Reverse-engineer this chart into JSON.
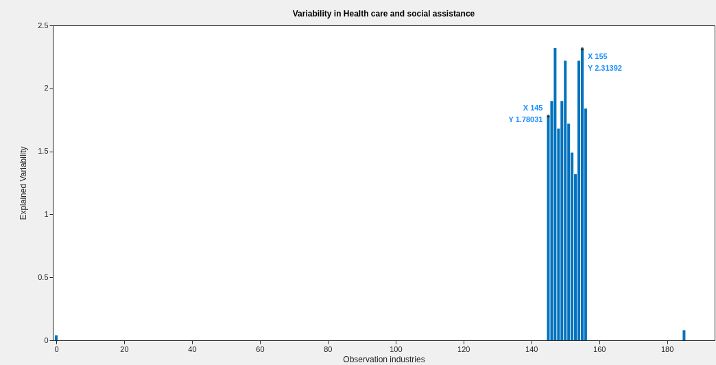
{
  "chart_data": {
    "type": "bar",
    "title": "Variability in Health care and social assistance",
    "xlabel": "Observation industries",
    "ylabel": "Explained Variability",
    "x": [
      0,
      145,
      146,
      147,
      148,
      149,
      150,
      151,
      152,
      153,
      154,
      155,
      156,
      185
    ],
    "series": [
      {
        "color": "#0072bd",
        "values": [
          0.04,
          1.78031,
          1.9,
          2.32,
          1.68,
          1.9,
          2.22,
          1.72,
          1.49,
          1.32,
          2.22,
          2.31392,
          1.84,
          0.08
        ]
      }
    ],
    "xlim": [
      0,
      193
    ],
    "xticks": [
      0,
      20,
      40,
      60,
      80,
      100,
      120,
      140,
      160,
      180
    ],
    "ylim": [
      0,
      2.5
    ],
    "yticks": [
      0,
      0.5,
      1,
      1.5,
      2,
      2.5
    ],
    "annotations": [
      {
        "text": "X 145\nY 1.78031",
        "x": 145,
        "y": 1.78031
      },
      {
        "text": "X 155\nY 2.31392",
        "x": 155,
        "y": 2.31392
      }
    ]
  }
}
